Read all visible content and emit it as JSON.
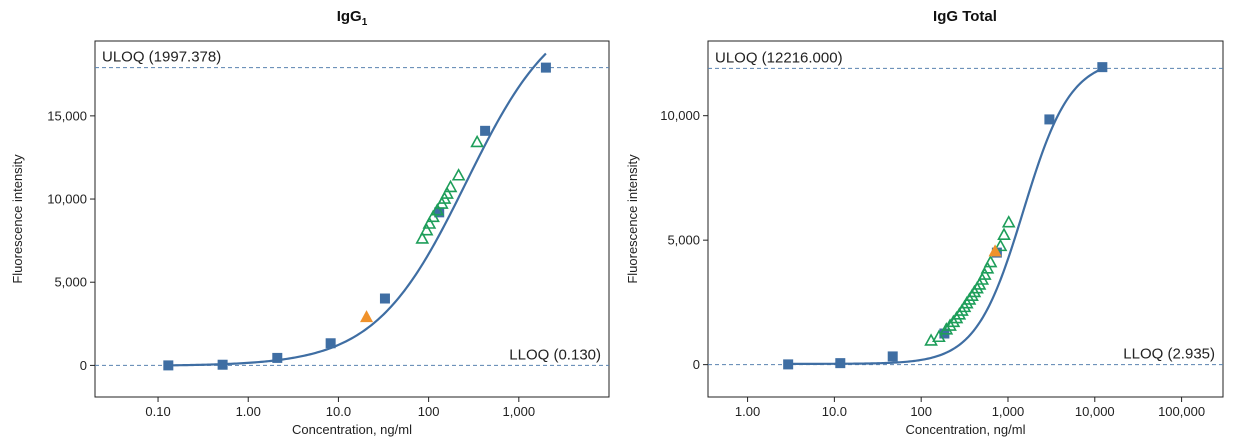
{
  "chart_data": [
    {
      "type": "scatter",
      "title": "IgG",
      "title_subscript": "1",
      "xlabel": "Concentration, ng/ml",
      "ylabel": "Fluorescence intensity",
      "x_scale": "log",
      "xlim": [
        0.02,
        10000
      ],
      "ylim": [
        -1900,
        19500
      ],
      "x_ticks": [
        0.1,
        1,
        10,
        100,
        1000
      ],
      "x_tick_labels": [
        "0.10",
        "1.00",
        "10.0",
        "100",
        "1,000"
      ],
      "y_ticks": [
        0,
        5000,
        10000,
        15000
      ],
      "y_tick_labels": [
        "0",
        "5,000",
        "10,000",
        "15,000"
      ],
      "ref_lines": [
        {
          "label": "ULOQ (1997.378)",
          "y": 17900,
          "label_position": "top-left"
        },
        {
          "label": "LLOQ (0.130)",
          "y": 0,
          "label_position": "top-right"
        }
      ],
      "fit_curve": {
        "color": "#3f6ea3",
        "bottom": -30,
        "top": 22000,
        "ec50": 260,
        "hill": 0.86
      },
      "series": [
        {
          "marker": "square",
          "color": "#3f6ea3",
          "x": [
            0.13,
            0.52,
            2.1,
            8.2,
            32.8,
            131,
            423,
            1997
          ],
          "y": [
            0,
            40,
            450,
            1330,
            4020,
            9200,
            14100,
            17900
          ]
        },
        {
          "marker": "open-triangle",
          "color": "#1e9e5a",
          "x": [
            85,
            95,
            102,
            112,
            125,
            140,
            150,
            160,
            175,
            215,
            345
          ],
          "y": [
            7600,
            8100,
            8500,
            8900,
            9300,
            9700,
            10000,
            10300,
            10700,
            11400,
            13400
          ]
        },
        {
          "marker": "triangle",
          "color": "#f0922b",
          "x": [
            20.5
          ],
          "y": [
            2900
          ]
        }
      ]
    },
    {
      "type": "scatter",
      "title": "IgG Total",
      "xlabel": "Concentration, ng/ml",
      "ylabel": "Fluorescence intensity",
      "x_scale": "log",
      "xlim": [
        0.35,
        300000
      ],
      "ylim": [
        -1300,
        13000
      ],
      "x_ticks": [
        1,
        10,
        100,
        1000,
        10000,
        100000
      ],
      "x_tick_labels": [
        "1.00",
        "10.0",
        "100",
        "1,000",
        "10,000",
        "100,000"
      ],
      "y_ticks": [
        0,
        5000,
        10000
      ],
      "y_tick_labels": [
        "0",
        "5,000",
        "10,000"
      ],
      "ref_lines": [
        {
          "label": "ULOQ (12216.000)",
          "y": 11900,
          "label_position": "top-left"
        },
        {
          "label": "LLOQ (2.935)",
          "y": 0,
          "label_position": "top-right"
        }
      ],
      "fit_curve": {
        "color": "#3f6ea3",
        "bottom": 30,
        "top": 12300,
        "ec50": 1500,
        "hill": 1.6
      },
      "series": [
        {
          "marker": "square",
          "color": "#3f6ea3",
          "x": [
            2.935,
            11.7,
            47,
            185,
            745,
            3000,
            12216
          ],
          "y": [
            10,
            60,
            330,
            1250,
            4500,
            9850,
            11950
          ]
        },
        {
          "marker": "open-triangle",
          "color": "#1e9e5a",
          "x": [
            130,
            160,
            195,
            215,
            235,
            255,
            275,
            295,
            315,
            335,
            360,
            385,
            410,
            440,
            470,
            505,
            540,
            580,
            630,
            820,
            900,
            1020
          ],
          "y": [
            950,
            1100,
            1400,
            1550,
            1700,
            1850,
            2000,
            2150,
            2300,
            2450,
            2600,
            2750,
            2900,
            3050,
            3200,
            3400,
            3600,
            3850,
            4100,
            4750,
            5200,
            5700
          ]
        },
        {
          "marker": "triangle",
          "color": "#f0922b",
          "x": [
            710
          ],
          "y": [
            4550
          ]
        }
      ]
    }
  ]
}
